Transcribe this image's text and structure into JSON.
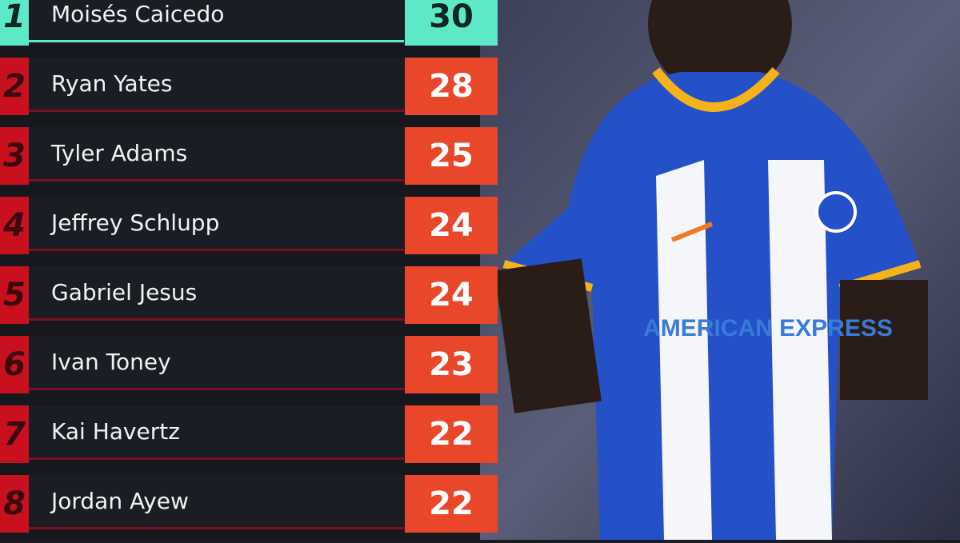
{
  "colors": {
    "leader": "#5de9c8",
    "rank": "#c8101e",
    "score": "#e8472a",
    "row_bg": "#1b1d24"
  },
  "rows": [
    {
      "rank": "1",
      "name": "Moisés Caicedo",
      "value": "30"
    },
    {
      "rank": "2",
      "name": "Ryan Yates",
      "value": "28"
    },
    {
      "rank": "3",
      "name": "Tyler Adams",
      "value": "25"
    },
    {
      "rank": "4",
      "name": "Jeffrey Schlupp",
      "value": "24"
    },
    {
      "rank": "5",
      "name": "Gabriel Jesus",
      "value": "24"
    },
    {
      "rank": "6",
      "name": "Ivan Toney",
      "value": "23"
    },
    {
      "rank": "7",
      "name": "Kai Havertz",
      "value": "22"
    },
    {
      "rank": "8",
      "name": "Jordan Ayew",
      "value": "22"
    }
  ],
  "photo": {
    "shirt_sponsor": "AMERICAN EXPRESS"
  }
}
